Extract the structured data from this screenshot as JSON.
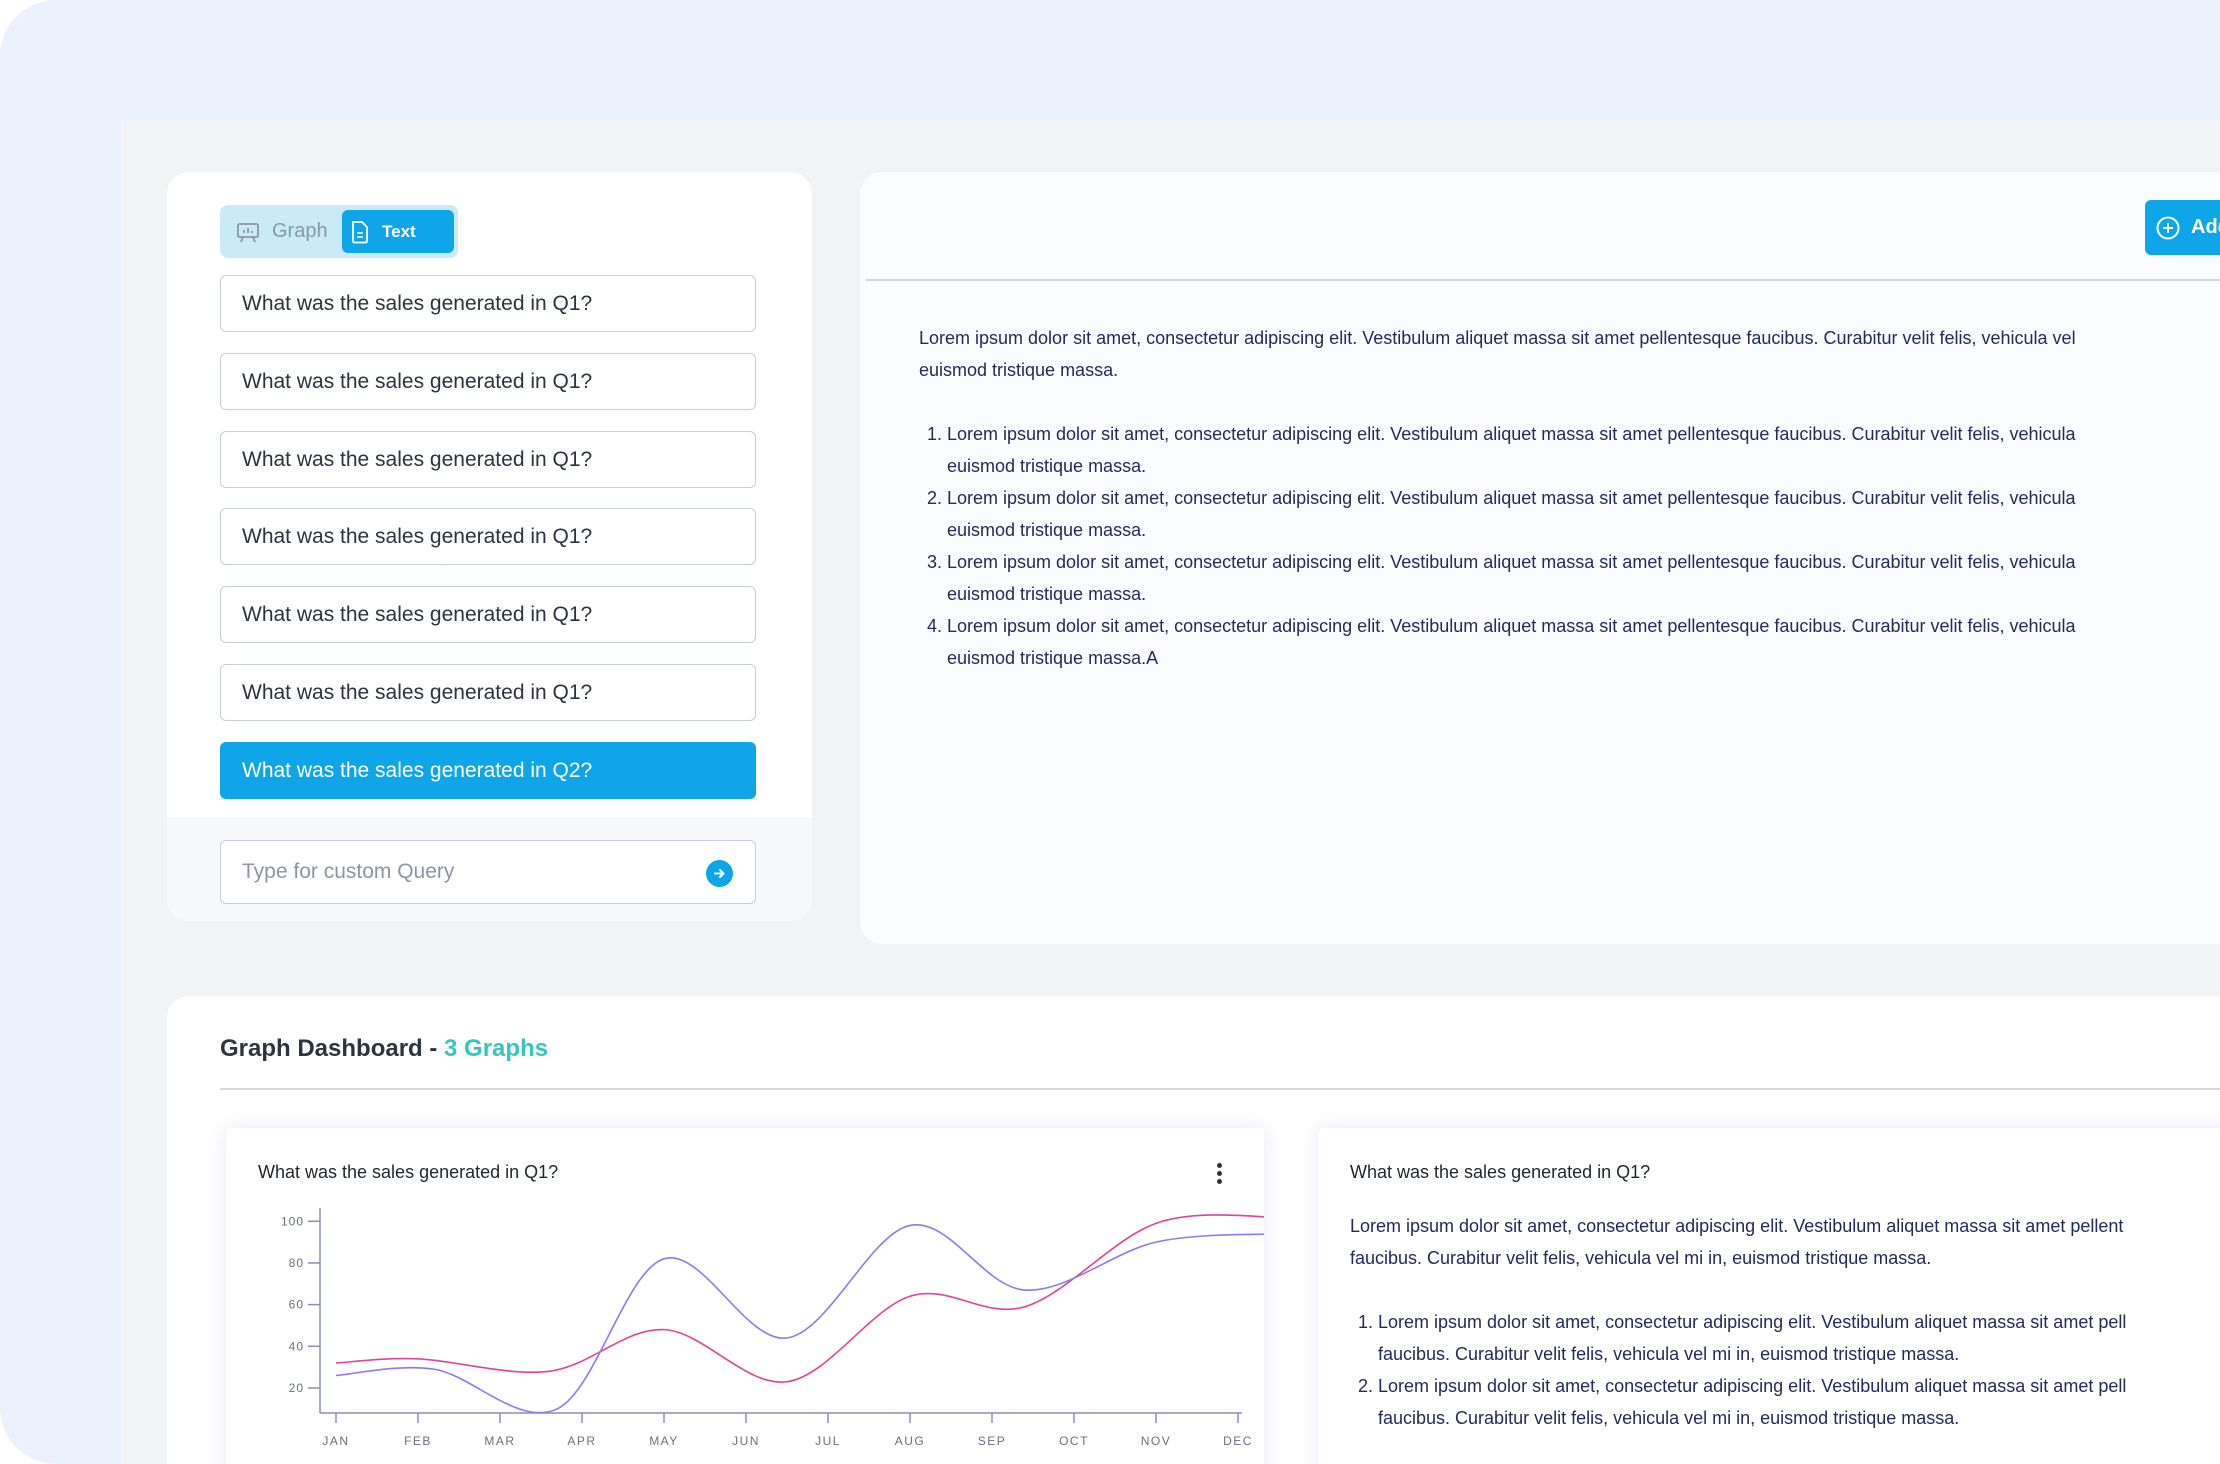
{
  "toggle": {
    "graph_label": "Graph",
    "text_label": "Text",
    "selected": "Text"
  },
  "questions": [
    "What was the sales generated in Q1?",
    "What was the sales generated in Q1?",
    "What was the sales generated in Q1?",
    "What was the sales generated in Q1?",
    "What was the sales generated in Q1?",
    "What was the sales generated in Q1?",
    "What was the sales generated in Q2?"
  ],
  "custom_query": {
    "placeholder": "Type for custom Query",
    "value": ""
  },
  "answer_panel": {
    "add_button_label": "Add",
    "intro_line1": "Lorem ipsum dolor sit amet, consectetur adipiscing elit. Vestibulum aliquet massa sit amet pellentesque faucibus. Curabitur velit felis, vehicula vel",
    "intro_line2": "euismod tristique massa.",
    "items": [
      {
        "line1": "Lorem ipsum dolor sit amet, consectetur adipiscing elit. Vestibulum aliquet massa sit amet pellentesque faucibus. Curabitur velit felis, vehicula",
        "line2": "euismod tristique massa."
      },
      {
        "line1": "Lorem ipsum dolor sit amet, consectetur adipiscing elit. Vestibulum aliquet massa sit amet pellentesque faucibus. Curabitur velit felis, vehicula",
        "line2": "euismod tristique massa."
      },
      {
        "line1": "Lorem ipsum dolor sit amet, consectetur adipiscing elit. Vestibulum aliquet massa sit amet pellentesque faucibus. Curabitur velit felis, vehicula",
        "line2": "euismod tristique massa."
      },
      {
        "line1": "Lorem ipsum dolor sit amet, consectetur adipiscing elit. Vestibulum aliquet massa sit amet pellentesque faucibus. Curabitur velit felis, vehicula",
        "line2": "euismod tristique massa.A"
      }
    ]
  },
  "dashboard": {
    "title": "Graph Dashboard - ",
    "count_label": "3 Graphs",
    "chart_card_title": "What was the sales generated in Q1?",
    "text_card": {
      "title": "What was the sales generated in Q1?",
      "intro_line1": "Lorem ipsum dolor sit amet, consectetur adipiscing elit. Vestibulum aliquet massa sit amet pellent",
      "intro_line2": "faucibus. Curabitur velit felis, vehicula vel mi in, euismod tristique massa.",
      "items": [
        {
          "line1": "Lorem ipsum dolor sit amet, consectetur adipiscing elit. Vestibulum aliquet massa sit amet pell",
          "line2": "faucibus. Curabitur velit felis, vehicula vel mi in, euismod tristique massa."
        },
        {
          "line1": "Lorem ipsum dolor sit amet, consectetur adipiscing elit. Vestibulum aliquet massa sit amet pell",
          "line2": "faucibus. Curabitur velit felis, vehicula vel mi in, euismod tristique massa."
        }
      ]
    }
  },
  "colors": {
    "accent": "#0ea5e9",
    "count": "#34c7c2",
    "series_pink": "#e0449a",
    "series_purple": "#8a7cf0"
  },
  "chart_data": {
    "type": "line",
    "title": "What was the sales generated in Q1?",
    "x": [
      "JAN",
      "FEB",
      "MAR",
      "APR",
      "MAY",
      "JUN",
      "JUL",
      "AUG",
      "SEP",
      "OCT",
      "NOV",
      "DEC"
    ],
    "yticks": [
      20,
      40,
      60,
      80,
      100
    ],
    "ylim": [
      8,
      103
    ],
    "grid": false,
    "series": [
      {
        "color": "#e0449a",
        "points": [
          [
            0,
            32
          ],
          [
            1,
            34
          ],
          [
            2.6,
            28
          ],
          [
            4,
            48
          ],
          [
            5.5,
            23
          ],
          [
            7,
            64
          ],
          [
            8.4,
            59
          ],
          [
            10,
            99
          ],
          [
            11.5,
            102
          ]
        ]
      },
      {
        "color": "#8a7cf0",
        "points": [
          [
            0,
            26
          ],
          [
            1.2,
            29
          ],
          [
            2.7,
            10
          ],
          [
            4,
            82
          ],
          [
            5.5,
            44
          ],
          [
            7,
            98
          ],
          [
            8.4,
            67
          ],
          [
            10,
            90
          ],
          [
            11.5,
            94
          ]
        ]
      }
    ]
  }
}
